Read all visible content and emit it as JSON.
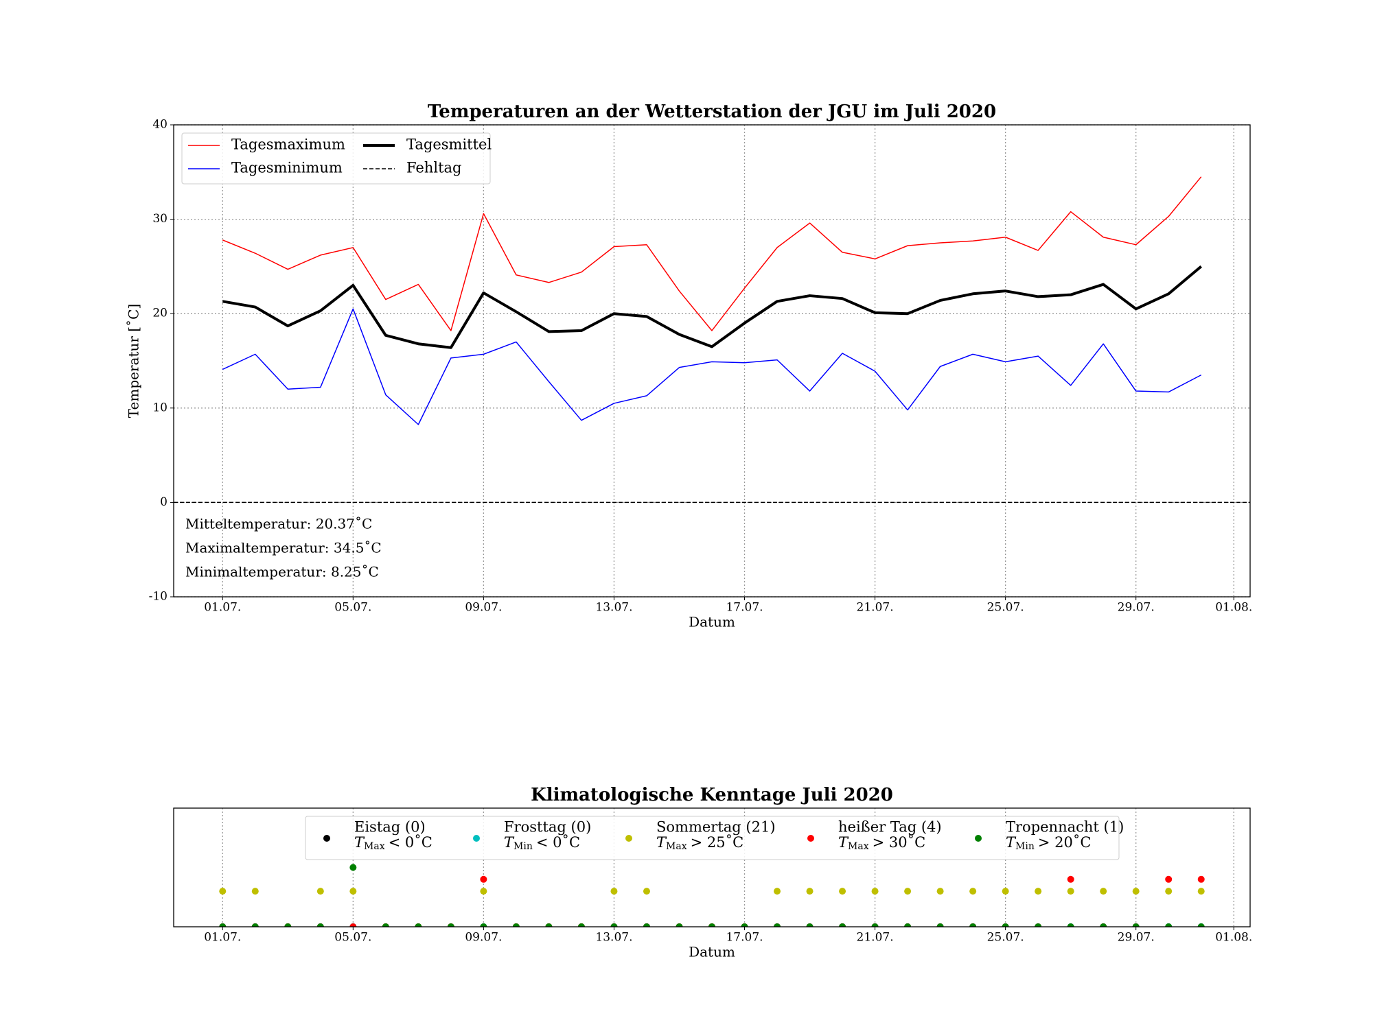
{
  "chart_data": [
    {
      "type": "line",
      "title": "Temperaturen an der Wetterstation der JGU im Juli 2020",
      "xlabel": "Datum",
      "ylabel": "Temperatur [˚C]",
      "x": [
        1,
        2,
        3,
        4,
        5,
        6,
        7,
        8,
        9,
        10,
        11,
        12,
        13,
        14,
        15,
        16,
        17,
        18,
        19,
        20,
        21,
        22,
        23,
        24,
        25,
        26,
        27,
        28,
        29,
        30,
        31
      ],
      "series": [
        {
          "name": "Tagesmaximum",
          "color": "#ff0000",
          "values": [
            27.8,
            26.4,
            24.7,
            26.2,
            27.0,
            21.5,
            23.1,
            18.2,
            30.6,
            24.1,
            23.3,
            24.4,
            27.1,
            27.3,
            22.4,
            18.2,
            22.7,
            27.0,
            29.6,
            26.5,
            25.8,
            27.2,
            27.5,
            27.7,
            28.1,
            26.7,
            30.8,
            28.1,
            27.3,
            30.3,
            34.5
          ]
        },
        {
          "name": "Tagesminimum",
          "color": "#0000ff",
          "values": [
            14.1,
            15.7,
            12.0,
            12.2,
            20.5,
            11.4,
            8.25,
            15.3,
            15.7,
            17.0,
            12.8,
            8.7,
            10.5,
            11.3,
            14.3,
            14.9,
            14.8,
            15.1,
            11.8,
            15.8,
            13.9,
            9.8,
            14.4,
            15.7,
            14.9,
            15.5,
            12.4,
            16.8,
            11.8,
            11.7,
            13.5
          ]
        },
        {
          "name": "Tagesmittel",
          "color": "#000000",
          "values": [
            21.3,
            20.7,
            18.7,
            20.3,
            23.0,
            17.7,
            16.8,
            16.4,
            22.2,
            20.2,
            18.1,
            18.2,
            20.0,
            19.7,
            17.8,
            16.5,
            19.0,
            21.3,
            21.9,
            21.6,
            20.1,
            20.0,
            21.4,
            22.1,
            22.4,
            21.8,
            22.0,
            23.1,
            20.5,
            22.1,
            25.0
          ]
        }
      ],
      "hline": {
        "name": "Fehltag",
        "value": 0,
        "color": "#000000"
      },
      "annotations": [
        "Mitteltemperatur: 20.37˚C",
        "Maximaltemperatur: 34.5˚C",
        "Minimaltemperatur: 8.25˚C"
      ],
      "xlim": [
        -0.5,
        32.5
      ],
      "xticks": [
        {
          "value": 1,
          "label": "01.07."
        },
        {
          "value": 5,
          "label": "05.07."
        },
        {
          "value": 9,
          "label": "09.07."
        },
        {
          "value": 13,
          "label": "13.07."
        },
        {
          "value": 17,
          "label": "17.07."
        },
        {
          "value": 21,
          "label": "21.07."
        },
        {
          "value": 25,
          "label": "25.07."
        },
        {
          "value": 29,
          "label": "29.07."
        },
        {
          "value": 32,
          "label": "01.08."
        }
      ],
      "ylim": [
        -10,
        40
      ],
      "yticks": [
        -10,
        0,
        10,
        20,
        30,
        40
      ],
      "grid": true,
      "legend": "upper left"
    },
    {
      "type": "scatter",
      "title": "Klimatologische Kenntage Juli 2020",
      "xlabel": "Datum",
      "x": [
        1,
        2,
        3,
        4,
        5,
        6,
        7,
        8,
        9,
        10,
        11,
        12,
        13,
        14,
        15,
        16,
        17,
        18,
        19,
        20,
        21,
        22,
        23,
        24,
        25,
        26,
        27,
        28,
        29,
        30,
        31
      ],
      "series": [
        {
          "name": "Eistag (0)",
          "condition": {
            "var": "T",
            "sub": "Max",
            "text": "< 0˚C"
          },
          "color": "#000000",
          "values": [
            0,
            0,
            0,
            0,
            0,
            0,
            0,
            0,
            0,
            0,
            0,
            0,
            0,
            0,
            0,
            0,
            0,
            0,
            0,
            0,
            0,
            0,
            0,
            0,
            0,
            0,
            0,
            0,
            0,
            0,
            0
          ]
        },
        {
          "name": "Frosttag (0)",
          "condition": {
            "var": "T",
            "sub": "Min",
            "text": "< 0˚C"
          },
          "color": "#00bfbf",
          "values": [
            0,
            0,
            0,
            0,
            0,
            0,
            0,
            0,
            0,
            0,
            0,
            0,
            0,
            0,
            0,
            0,
            0,
            0,
            0,
            0,
            0,
            0,
            0,
            0,
            0,
            0,
            0,
            0,
            0,
            0,
            0
          ]
        },
        {
          "name": "Sommertag (21)",
          "condition": {
            "var": "T",
            "sub": "Max",
            "text": "> 25˚C"
          },
          "color": "#bfbf00",
          "values": [
            3,
            3,
            0,
            3,
            3,
            0,
            0,
            0,
            3,
            0,
            0,
            0,
            3,
            3,
            0,
            0,
            0,
            3,
            3,
            3,
            3,
            3,
            3,
            3,
            3,
            3,
            3,
            3,
            3,
            3,
            3
          ]
        },
        {
          "name": "heißer Tag (4)",
          "condition": {
            "var": "T",
            "sub": "Max",
            "text": "> 30˚C"
          },
          "color": "#ff0000",
          "values": [
            0,
            0,
            0,
            0,
            0,
            0,
            0,
            0,
            4,
            0,
            0,
            0,
            0,
            0,
            0,
            0,
            0,
            0,
            0,
            0,
            0,
            0,
            0,
            0,
            0,
            0,
            4,
            0,
            0,
            4,
            4
          ]
        },
        {
          "name": "Tropennacht (1)",
          "condition": {
            "var": "T",
            "sub": "Min",
            "text": "> 20˚C"
          },
          "color": "#008000",
          "values": [
            0,
            0,
            0,
            0,
            5,
            0,
            0,
            0,
            0,
            0,
            0,
            0,
            0,
            0,
            0,
            0,
            0,
            0,
            0,
            0,
            0,
            0,
            0,
            0,
            0,
            0,
            0,
            0,
            0,
            0,
            0
          ]
        }
      ],
      "xlim": [
        -0.5,
        32.5
      ],
      "xticks": [
        {
          "value": 1,
          "label": "01.07."
        },
        {
          "value": 5,
          "label": "05.07."
        },
        {
          "value": 9,
          "label": "09.07."
        },
        {
          "value": 13,
          "label": "13.07."
        },
        {
          "value": 17,
          "label": "17.07."
        },
        {
          "value": 21,
          "label": "21.07."
        },
        {
          "value": 25,
          "label": "25.07."
        },
        {
          "value": 29,
          "label": "29.07."
        },
        {
          "value": 32,
          "label": "01.08."
        }
      ],
      "ylim": [
        0,
        10
      ],
      "grid": true,
      "legend": "upper center"
    }
  ]
}
